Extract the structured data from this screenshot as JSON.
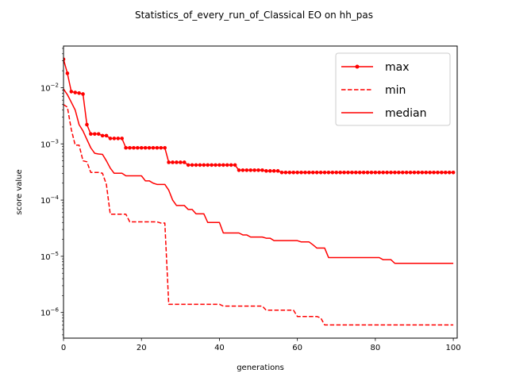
{
  "chart_data": {
    "type": "line",
    "title": "Statistics_of_every_run_of_Classical EO on hh_pas",
    "xlabel": "generations",
    "ylabel": "score value",
    "xlim": [
      0,
      101
    ],
    "ylim": [
      3.5e-07,
      0.055
    ],
    "yscale": "log",
    "xticks": [
      0,
      20,
      40,
      60,
      80,
      100
    ],
    "xtick_labels": [
      "0",
      "20",
      "40",
      "60",
      "80",
      "100"
    ],
    "yticks": [
      1e-06,
      1e-05,
      0.0001,
      0.001,
      0.01
    ],
    "legend": "top-right",
    "grid": false,
    "series": [
      {
        "name": "max",
        "color": "#ff0000",
        "style": "solid-marker",
        "x": [
          0,
          1,
          2,
          3,
          4,
          5,
          6,
          7,
          8,
          9,
          10,
          11,
          12,
          13,
          14,
          15,
          16,
          17,
          18,
          19,
          20,
          21,
          22,
          23,
          24,
          25,
          26,
          27,
          28,
          29,
          30,
          31,
          32,
          33,
          34,
          35,
          36,
          37,
          38,
          39,
          40,
          41,
          42,
          43,
          44,
          45,
          46,
          47,
          48,
          49,
          50,
          51,
          52,
          53,
          54,
          55,
          56,
          57,
          58,
          59,
          60,
          61,
          62,
          63,
          64,
          65,
          66,
          67,
          68,
          69,
          70,
          71,
          72,
          73,
          74,
          75,
          76,
          77,
          78,
          79,
          80,
          81,
          82,
          83,
          84,
          85,
          86,
          87,
          88,
          89,
          90,
          91,
          92,
          93,
          94,
          95,
          96,
          97,
          98,
          99,
          100
        ],
        "y": [
          0.032,
          0.018,
          0.0085,
          0.0082,
          0.008,
          0.0077,
          0.0022,
          0.0015,
          0.0015,
          0.0015,
          0.0014,
          0.0014,
          0.00125,
          0.00125,
          0.00125,
          0.00125,
          0.00085,
          0.00085,
          0.00085,
          0.00085,
          0.00085,
          0.00085,
          0.00085,
          0.00085,
          0.00085,
          0.00085,
          0.00085,
          0.00047,
          0.00047,
          0.00047,
          0.00047,
          0.00047,
          0.00042,
          0.00042,
          0.00042,
          0.00042,
          0.00042,
          0.00042,
          0.00042,
          0.00042,
          0.00042,
          0.00042,
          0.00042,
          0.00042,
          0.00042,
          0.00034,
          0.00034,
          0.00034,
          0.00034,
          0.00034,
          0.00034,
          0.00034,
          0.00033,
          0.00033,
          0.00033,
          0.00033,
          0.00031,
          0.00031,
          0.00031,
          0.00031,
          0.00031,
          0.00031,
          0.00031,
          0.00031,
          0.00031,
          0.00031,
          0.00031,
          0.00031,
          0.00031,
          0.00031,
          0.00031,
          0.00031,
          0.00031,
          0.00031,
          0.00031,
          0.00031,
          0.00031,
          0.00031,
          0.00031,
          0.00031,
          0.00031,
          0.00031,
          0.00031,
          0.00031,
          0.00031,
          0.00031,
          0.00031,
          0.00031,
          0.00031,
          0.00031,
          0.00031,
          0.00031,
          0.00031,
          0.00031,
          0.00031,
          0.00031,
          0.00031,
          0.00031,
          0.00031,
          0.00031,
          0.00031
        ]
      },
      {
        "name": "min",
        "color": "#ff0000",
        "style": "dashed",
        "x": [
          0,
          1,
          2,
          3,
          4,
          5,
          6,
          7,
          8,
          9,
          10,
          11,
          12,
          13,
          14,
          15,
          16,
          17,
          18,
          19,
          20,
          21,
          22,
          23,
          24,
          25,
          26,
          27,
          28,
          29,
          30,
          31,
          32,
          33,
          34,
          35,
          36,
          37,
          38,
          39,
          40,
          41,
          42,
          43,
          44,
          45,
          46,
          47,
          48,
          49,
          50,
          51,
          52,
          53,
          54,
          55,
          56,
          57,
          58,
          59,
          60,
          61,
          62,
          63,
          64,
          65,
          66,
          67,
          68,
          69,
          70,
          71,
          72,
          73,
          74,
          75,
          76,
          77,
          78,
          79,
          80,
          81,
          82,
          83,
          84,
          85,
          86,
          87,
          88,
          89,
          90,
          91,
          92,
          93,
          94,
          95,
          96,
          97,
          98,
          99,
          100
        ],
        "y": [
          0.005,
          0.0045,
          0.0018,
          0.00095,
          0.00095,
          0.0005,
          0.00048,
          0.00031,
          0.00031,
          0.00031,
          0.0003,
          0.00019,
          5.6e-05,
          5.6e-05,
          5.6e-05,
          5.6e-05,
          5.6e-05,
          4.1e-05,
          4.1e-05,
          4.1e-05,
          4.1e-05,
          4.1e-05,
          4.1e-05,
          4.1e-05,
          4.1e-05,
          3.9e-05,
          3.9e-05,
          1.4e-06,
          1.4e-06,
          1.4e-06,
          1.4e-06,
          1.4e-06,
          1.4e-06,
          1.4e-06,
          1.4e-06,
          1.4e-06,
          1.4e-06,
          1.4e-06,
          1.4e-06,
          1.4e-06,
          1.4e-06,
          1.3e-06,
          1.3e-06,
          1.3e-06,
          1.3e-06,
          1.3e-06,
          1.3e-06,
          1.3e-06,
          1.3e-06,
          1.3e-06,
          1.3e-06,
          1.3e-06,
          1.1e-06,
          1.1e-06,
          1.1e-06,
          1.1e-06,
          1.1e-06,
          1.1e-06,
          1.1e-06,
          1.1e-06,
          8.5e-07,
          8.5e-07,
          8.5e-07,
          8.5e-07,
          8.5e-07,
          8.5e-07,
          8e-07,
          6e-07,
          6e-07,
          6e-07,
          6e-07,
          6e-07,
          6e-07,
          6e-07,
          6e-07,
          6e-07,
          6e-07,
          6e-07,
          6e-07,
          6e-07,
          6e-07,
          6e-07,
          6e-07,
          6e-07,
          6e-07,
          6e-07,
          6e-07,
          6e-07,
          6e-07,
          6e-07,
          6e-07,
          6e-07,
          6e-07,
          6e-07,
          6e-07,
          6e-07,
          6e-07,
          6e-07,
          6e-07,
          6e-07,
          6e-07
        ]
      },
      {
        "name": "median",
        "color": "#ff0000",
        "style": "solid",
        "x": [
          0,
          1,
          2,
          3,
          4,
          5,
          6,
          7,
          8,
          9,
          10,
          11,
          12,
          13,
          14,
          15,
          16,
          17,
          18,
          19,
          20,
          21,
          22,
          23,
          24,
          25,
          26,
          27,
          28,
          29,
          30,
          31,
          32,
          33,
          34,
          35,
          36,
          37,
          38,
          39,
          40,
          41,
          42,
          43,
          44,
          45,
          46,
          47,
          48,
          49,
          50,
          51,
          52,
          53,
          54,
          55,
          56,
          57,
          58,
          59,
          60,
          61,
          62,
          63,
          64,
          65,
          66,
          67,
          68,
          69,
          70,
          71,
          72,
          73,
          74,
          75,
          76,
          77,
          78,
          79,
          80,
          81,
          82,
          83,
          84,
          85,
          86,
          87,
          88,
          89,
          90,
          91,
          92,
          93,
          94,
          95,
          96,
          97,
          98,
          99,
          100
        ],
        "y": [
          0.0095,
          0.0075,
          0.0055,
          0.004,
          0.0022,
          0.0017,
          0.0012,
          0.00085,
          0.00068,
          0.00066,
          0.00065,
          0.0005,
          0.00037,
          0.0003,
          0.0003,
          0.0003,
          0.00027,
          0.00027,
          0.00027,
          0.00027,
          0.00027,
          0.00022,
          0.00022,
          0.0002,
          0.00019,
          0.00019,
          0.00019,
          0.00015,
          0.0001,
          8e-05,
          8e-05,
          8e-05,
          6.8e-05,
          6.8e-05,
          5.7e-05,
          5.7e-05,
          5.7e-05,
          4e-05,
          4e-05,
          4e-05,
          4e-05,
          2.6e-05,
          2.6e-05,
          2.6e-05,
          2.6e-05,
          2.6e-05,
          2.4e-05,
          2.4e-05,
          2.2e-05,
          2.2e-05,
          2.2e-05,
          2.2e-05,
          2.1e-05,
          2.1e-05,
          1.9e-05,
          1.9e-05,
          1.9e-05,
          1.9e-05,
          1.9e-05,
          1.9e-05,
          1.9e-05,
          1.8e-05,
          1.8e-05,
          1.8e-05,
          1.6e-05,
          1.4e-05,
          1.4e-05,
          1.4e-05,
          9.5e-06,
          9.5e-06,
          9.5e-06,
          9.5e-06,
          9.5e-06,
          9.5e-06,
          9.5e-06,
          9.5e-06,
          9.5e-06,
          9.5e-06,
          9.5e-06,
          9.5e-06,
          9.5e-06,
          9.5e-06,
          8.7e-06,
          8.7e-06,
          8.7e-06,
          7.5e-06,
          7.5e-06,
          7.5e-06,
          7.5e-06,
          7.5e-06,
          7.5e-06,
          7.5e-06,
          7.5e-06,
          7.5e-06,
          7.5e-06,
          7.5e-06,
          7.5e-06,
          7.5e-06,
          7.5e-06,
          7.5e-06,
          7.5e-06
        ]
      }
    ]
  }
}
